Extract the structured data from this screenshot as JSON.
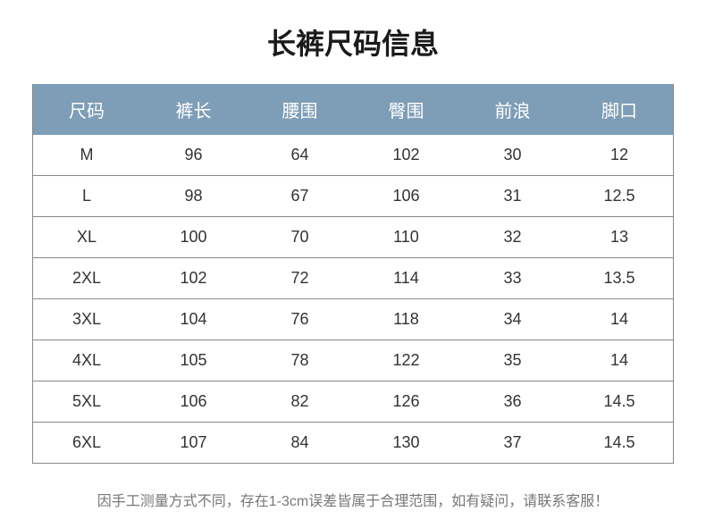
{
  "title": "长裤尺码信息",
  "table": {
    "columns": [
      "尺码",
      "裤长",
      "腰围",
      "臀围",
      "前浪",
      "脚口"
    ],
    "rows": [
      [
        "M",
        "96",
        "64",
        "102",
        "30",
        "12"
      ],
      [
        "L",
        "98",
        "67",
        "106",
        "31",
        "12.5"
      ],
      [
        "XL",
        "100",
        "70",
        "110",
        "32",
        "13"
      ],
      [
        "2XL",
        "102",
        "72",
        "114",
        "33",
        "13.5"
      ],
      [
        "3XL",
        "104",
        "76",
        "118",
        "34",
        "14"
      ],
      [
        "4XL",
        "105",
        "78",
        "122",
        "35",
        "14"
      ],
      [
        "5XL",
        "106",
        "82",
        "126",
        "36",
        "14.5"
      ],
      [
        "6XL",
        "107",
        "84",
        "130",
        "37",
        "14.5"
      ]
    ]
  },
  "footer_note": "因手工测量方式不同，存在1-3cm误差皆属于合理范围，如有疑问，请联系客服！",
  "style": {
    "background_color": "#ffffff",
    "title_color": "#1a1a1a",
    "header_bg": "#7e9db6",
    "header_text_color": "#ffffff",
    "body_text_color": "#333333",
    "row_border_color": "#888888",
    "footer_color": "#777777",
    "table_border_color": "#888888"
  }
}
